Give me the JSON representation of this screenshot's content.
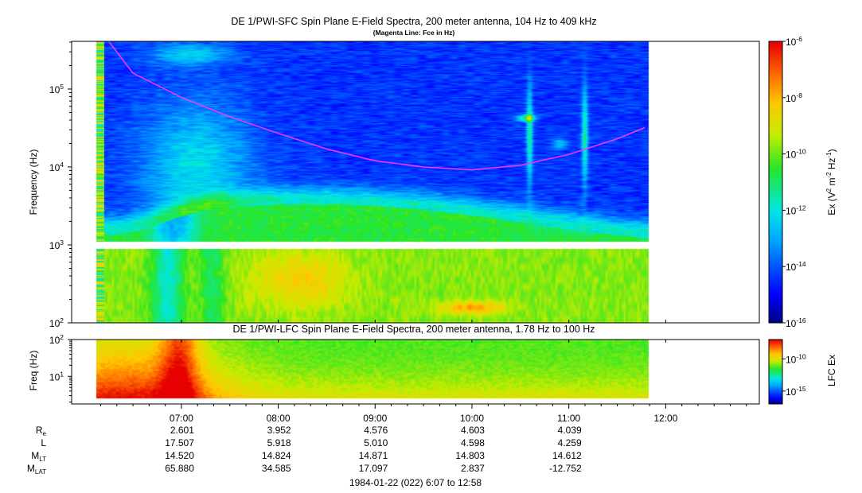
{
  "chart_data": [
    {
      "type": "heatmap",
      "title": "DE 1/PWI-SFC  Spin Plane E-Field Spectra, 200 meter antenna, 104 Hz to 409 kHz",
      "subtitle": "(Magenta Line: Fce in Hz)",
      "ylabel": "Frequency (Hz)",
      "y_scale": "log",
      "ylim": [
        100,
        409000
      ],
      "y_ticks": [
        {
          "value": 100,
          "label_base": "10",
          "label_exp": "2"
        },
        {
          "value": 1000,
          "label_base": "10",
          "label_exp": "3"
        },
        {
          "value": 10000,
          "label_base": "10",
          "label_exp": "4"
        },
        {
          "value": 100000,
          "label_base": "10",
          "label_exp": "5"
        }
      ],
      "x_range": [
        "05:52",
        "12:58"
      ],
      "data_coverage": [
        "06:07",
        "11:49"
      ],
      "gap_band_hz": [
        900,
        1100
      ],
      "colorbar": {
        "label": "Ex (V² m⁻² Hz⁻¹)",
        "label_parts": {
          "base": "Ex (V",
          "e1": "2",
          "mid": " m",
          "e2": "-2",
          "mid2": " Hz",
          "e3": "-1",
          "end": ")"
        },
        "scale": "log",
        "range": [
          "1e-16",
          "1e-6"
        ],
        "ticks": [
          {
            "value": -6,
            "label_base": "10",
            "label_exp": "-6"
          },
          {
            "value": -8,
            "label_base": "10",
            "label_exp": "-8"
          },
          {
            "value": -10,
            "label_base": "10",
            "label_exp": "-10"
          },
          {
            "value": -12,
            "label_base": "10",
            "label_exp": "-12"
          },
          {
            "value": -14,
            "label_base": "10",
            "label_exp": "-14"
          },
          {
            "value": -16,
            "label_base": "10",
            "label_exp": "-16"
          }
        ]
      },
      "fce_line": {
        "color": "#ff33ff",
        "points": [
          {
            "t": "06:15",
            "hz": 409000
          },
          {
            "t": "06:30",
            "hz": 160000
          },
          {
            "t": "07:00",
            "hz": 78000
          },
          {
            "t": "07:30",
            "hz": 44000
          },
          {
            "t": "08:00",
            "hz": 27000
          },
          {
            "t": "08:30",
            "hz": 17000
          },
          {
            "t": "09:00",
            "hz": 12000
          },
          {
            "t": "09:30",
            "hz": 10000
          },
          {
            "t": "10:00",
            "hz": 9200
          },
          {
            "t": "10:30",
            "hz": 10500
          },
          {
            "t": "11:00",
            "hz": 14500
          },
          {
            "t": "11:30",
            "hz": 23000
          },
          {
            "t": "11:47",
            "hz": 32000
          }
        ]
      }
    },
    {
      "type": "heatmap",
      "title": "DE 1/PWI-LFC  Spin Plane E-Field Spectra, 200 meter antenna, 1.78 Hz to 100 Hz",
      "ylabel": "Freq (Hz)",
      "y_scale": "log",
      "ylim": [
        1.78,
        100
      ],
      "y_ticks": [
        {
          "value": 10,
          "label_base": "10",
          "label_exp": "1"
        },
        {
          "value": 100,
          "label_base": "10",
          "label_exp": "2"
        }
      ],
      "x_range": [
        "05:52",
        "12:58"
      ],
      "data_coverage": [
        "06:07",
        "11:49"
      ],
      "colorbar": {
        "label": "LFC Ex",
        "scale": "log",
        "range": [
          "1e-17",
          "1e-7"
        ],
        "ticks": [
          {
            "value": -10,
            "label_base": "10",
            "label_exp": "-10"
          },
          {
            "value": -15,
            "label_base": "10",
            "label_exp": "-15"
          }
        ]
      }
    }
  ],
  "time_axis": {
    "ticks": [
      "07:00",
      "08:00",
      "09:00",
      "10:00",
      "11:00",
      "12:00"
    ],
    "label": "1984-01-22 (022) 6:07 to 12:58"
  },
  "ephemeris": {
    "rows": [
      {
        "label": "R",
        "sub": "e",
        "values": [
          "2.601",
          "3.952",
          "4.576",
          "4.603",
          "4.039"
        ]
      },
      {
        "label": "L",
        "sub": "",
        "values": [
          "17.507",
          "5.918",
          "5.010",
          "4.598",
          "4.259"
        ]
      },
      {
        "label": "M",
        "sub": "LT",
        "values": [
          "14.520",
          "14.824",
          "14.871",
          "14.803",
          "14.612"
        ]
      },
      {
        "label": "M",
        "sub": "LAT",
        "values": [
          "65.880",
          "34.585",
          "17.097",
          "2.837",
          "-12.752"
        ]
      }
    ]
  },
  "colors": {
    "panel_bg": "#ffffff",
    "axis": "#000000",
    "fce": "#ff33ff"
  }
}
